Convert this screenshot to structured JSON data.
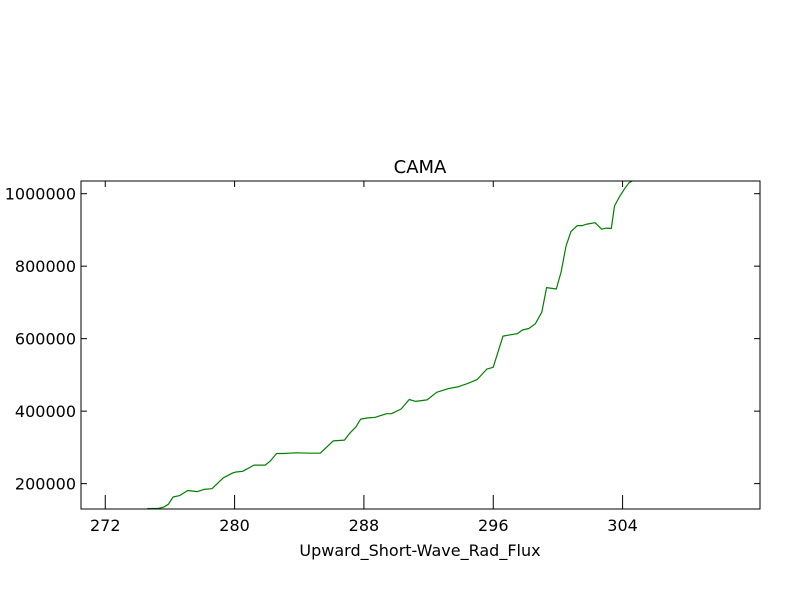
{
  "chart_data": {
    "type": "line",
    "title": "CAMA",
    "xlabel": "Upward_Short-Wave_Rad_Flux",
    "ylabel": "",
    "xlim": [
      270.5,
      312.5
    ],
    "ylim": [
      130000,
      1035000
    ],
    "grid": false,
    "x_ticks": [
      272,
      280,
      288,
      296,
      304
    ],
    "x_tick_labels": [
      "272",
      "280",
      "288",
      "296",
      "304"
    ],
    "y_ticks": [
      200000,
      400000,
      600000,
      800000,
      1000000
    ],
    "y_tick_labels": [
      "200000",
      "400000",
      "600000",
      "800000",
      "1000000"
    ],
    "series": [
      {
        "color": "#007f00",
        "x": [
          274.6,
          275.3,
          275.6,
          275.9,
          276.2,
          276.6,
          277.1,
          277.7,
          278.1,
          278.6,
          279.3,
          279.9,
          280.1,
          280.5,
          281.2,
          281.9,
          282.2,
          282.6,
          283.0,
          283.4,
          283.8,
          284.6,
          285.3,
          286.1,
          286.8,
          287.1,
          287.5,
          287.8,
          288.2,
          288.7,
          289.4,
          289.7,
          290.3,
          290.8,
          291.2,
          291.9,
          292.5,
          293.2,
          293.8,
          294.4,
          295.0,
          295.6,
          296.0,
          296.6,
          297.1,
          297.5,
          297.8,
          298.2,
          298.6,
          299.0,
          299.3,
          299.9,
          300.2,
          300.5,
          300.8,
          301.2,
          301.5,
          301.8,
          302.3,
          302.7,
          303.0,
          303.3,
          303.5,
          303.8,
          304.1,
          304.4,
          304.8,
          305.4,
          306.0
        ],
        "y": [
          131000,
          132000,
          135000,
          143000,
          163000,
          167000,
          181000,
          178000,
          184000,
          186000,
          216000,
          230000,
          232000,
          234000,
          251000,
          251000,
          262000,
          283000,
          283000,
          284000,
          285000,
          284000,
          284000,
          318000,
          320000,
          338000,
          356000,
          378000,
          381000,
          383000,
          393000,
          393000,
          406000,
          432000,
          427000,
          431000,
          452000,
          462000,
          467000,
          476000,
          487000,
          516000,
          521000,
          607000,
          611000,
          614000,
          624000,
          628000,
          641000,
          673000,
          741000,
          737000,
          784000,
          855000,
          895000,
          912000,
          912000,
          916000,
          920000,
          902000,
          905000,
          904000,
          966000,
          991000,
          1012000,
          1030000,
          1040000,
          1040000,
          1040000
        ]
      }
    ]
  }
}
